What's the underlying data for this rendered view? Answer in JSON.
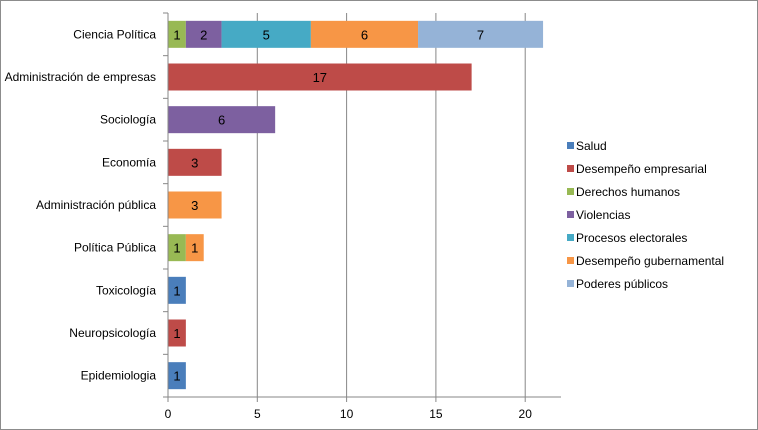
{
  "chart_data": {
    "type": "bar",
    "orientation": "horizontal",
    "stacked": true,
    "categories": [
      "Ciencia Política",
      "Administración de empresas",
      "Sociología",
      "Economía",
      "Administración pública",
      "Política Pública",
      "Toxicología",
      "Neuropsicología",
      "Epidemiologia"
    ],
    "series": [
      {
        "name": "Salud",
        "color": "#4a7ebb",
        "values": [
          0,
          0,
          0,
          0,
          0,
          0,
          1,
          0,
          1
        ]
      },
      {
        "name": "Desempeño empresarial",
        "color": "#be4b48",
        "values": [
          0,
          17,
          0,
          3,
          0,
          0,
          0,
          1,
          0
        ]
      },
      {
        "name": "Derechos humanos",
        "color": "#98b954",
        "values": [
          1,
          0,
          0,
          0,
          0,
          1,
          0,
          0,
          0
        ]
      },
      {
        "name": "Violencias",
        "color": "#7d60a0",
        "values": [
          2,
          0,
          6,
          0,
          0,
          0,
          0,
          0,
          0
        ]
      },
      {
        "name": "Procesos electorales",
        "color": "#46aac5",
        "values": [
          5,
          0,
          0,
          0,
          0,
          0,
          0,
          0,
          0
        ]
      },
      {
        "name": "Desempeño gubernamental",
        "color": "#f79646",
        "values": [
          6,
          0,
          0,
          0,
          3,
          1,
          0,
          0,
          0
        ]
      },
      {
        "name": "Poderes públicos",
        "color": "#95b3d7",
        "values": [
          7,
          0,
          0,
          0,
          0,
          0,
          0,
          0,
          0
        ]
      }
    ],
    "xlim": [
      0,
      22
    ],
    "xticks": [
      0,
      5,
      10,
      15,
      20
    ],
    "title": "",
    "xlabel": "",
    "ylabel": "",
    "grid": "vertical",
    "legend": "right"
  }
}
